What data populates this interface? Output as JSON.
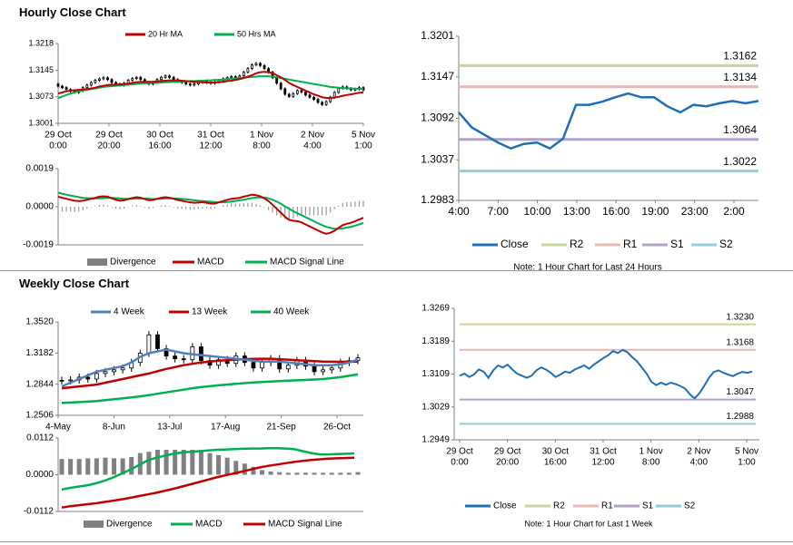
{
  "sections": {
    "hourly_title": "Hourly Close Chart",
    "weekly_title": "Weekly Close Chart"
  },
  "colors": {
    "ma_red": "#c00000",
    "ma_green": "#00b050",
    "ma_blue": "#4f81bd",
    "close": "#1f6fb5",
    "r2": "#c3d69b",
    "r1": "#e6b9b8",
    "s1": "#b3a2c7",
    "s2": "#93cddd",
    "divergence": "#808080",
    "axis": "#808080"
  },
  "chart_data": [
    {
      "id": "hourly_price",
      "type": "candlestick",
      "title": "Hourly Close Chart",
      "legend": [
        "20 Hr MA",
        "50 Hrs MA"
      ],
      "y_ticks": [
        "1.3218",
        "1.3145",
        "1.3073",
        "1.3001"
      ],
      "ylim": [
        1.3001,
        1.3218
      ],
      "x_ticks": [
        [
          "29 Oct",
          "0:00"
        ],
        [
          "29 Oct",
          "20:00"
        ],
        [
          "30 Oct",
          "16:00"
        ],
        [
          "31 Oct",
          "12:00"
        ],
        [
          "1 Nov",
          "8:00"
        ],
        [
          "2 Nov",
          "4:00"
        ],
        [
          "5 Nov",
          "1:00"
        ]
      ],
      "close": [
        1.3102,
        1.3098,
        1.3093,
        1.3088,
        1.3085,
        1.309,
        1.3098,
        1.3105,
        1.3112,
        1.3118,
        1.3122,
        1.3125,
        1.312,
        1.3112,
        1.3108,
        1.3105,
        1.311,
        1.3118,
        1.3123,
        1.3126,
        1.312,
        1.3112,
        1.3108,
        1.3112,
        1.312,
        1.3126,
        1.313,
        1.3126,
        1.312,
        1.3115,
        1.3112,
        1.3108,
        1.3105,
        1.3108,
        1.3112,
        1.3115,
        1.3112,
        1.311,
        1.3113,
        1.3118,
        1.3122,
        1.3125,
        1.3128,
        1.3126,
        1.313,
        1.314,
        1.315,
        1.316,
        1.3164,
        1.3158,
        1.315,
        1.314,
        1.3125,
        1.311,
        1.3095,
        1.308,
        1.3074,
        1.3082,
        1.309,
        1.3086,
        1.3078,
        1.3072,
        1.3066,
        1.3058,
        1.3052,
        1.306,
        1.3072,
        1.3085,
        1.3096,
        1.31,
        1.3096,
        1.3092,
        1.3094,
        1.3098,
        1.3092
      ],
      "ma20": [
        1.3082,
        1.3085,
        1.3088,
        1.309,
        1.3091,
        1.3092,
        1.3093,
        1.3094,
        1.3096,
        1.3098,
        1.3101,
        1.3103,
        1.3105,
        1.3106,
        1.3106,
        1.3107,
        1.3108,
        1.3109,
        1.3111,
        1.3113,
        1.3114,
        1.3114,
        1.3114,
        1.3114,
        1.3115,
        1.3116,
        1.3117,
        1.3118,
        1.3118,
        1.3118,
        1.3117,
        1.3116,
        1.3115,
        1.3114,
        1.3113,
        1.3113,
        1.3112,
        1.3112,
        1.3112,
        1.3113,
        1.3114,
        1.3116,
        1.3117,
        1.3119,
        1.3121,
        1.3124,
        1.3128,
        1.3132,
        1.3137,
        1.314,
        1.3141,
        1.314,
        1.3137,
        1.3132,
        1.3126,
        1.3119,
        1.3111,
        1.3105,
        1.31,
        1.3095,
        1.309,
        1.3085,
        1.308,
        1.3076,
        1.3072,
        1.307,
        1.307,
        1.3071,
        1.3073,
        1.3076,
        1.3078,
        1.308,
        1.3082,
        1.3084,
        1.3085
      ],
      "ma50": [
        1.307,
        1.3074,
        1.3078,
        1.3082,
        1.3085,
        1.3088,
        1.309,
        1.3092,
        1.3094,
        1.3096,
        1.3098,
        1.31,
        1.3101,
        1.3102,
        1.3103,
        1.3104,
        1.3105,
        1.3106,
        1.3107,
        1.3108,
        1.3109,
        1.311,
        1.311,
        1.3111,
        1.3111,
        1.3112,
        1.3113,
        1.3113,
        1.3114,
        1.3114,
        1.3115,
        1.3115,
        1.3116,
        1.3116,
        1.3117,
        1.3117,
        1.3118,
        1.3118,
        1.3119,
        1.3119,
        1.312,
        1.3121,
        1.3122,
        1.3123,
        1.3124,
        1.3125,
        1.3126,
        1.3127,
        1.3128,
        1.3129,
        1.3129,
        1.3129,
        1.3128,
        1.3126,
        1.3124,
        1.3122,
        1.312,
        1.3118,
        1.3116,
        1.3114,
        1.3112,
        1.311,
        1.3108,
        1.3106,
        1.3104,
        1.3102,
        1.31,
        1.3099,
        1.3098,
        1.3097,
        1.3096,
        1.3096,
        1.3095,
        1.3095,
        1.3095
      ]
    },
    {
      "id": "hourly_macd",
      "type": "macd",
      "legend": [
        "Divergence",
        "MACD",
        "MACD Signal Line"
      ],
      "y_ticks": [
        "0.0019",
        "0.0000",
        "-0.0019"
      ],
      "ylim": [
        -0.0019,
        0.0019
      ],
      "macd": [
        0.0005,
        0.00045,
        0.0004,
        0.00035,
        0.0003,
        0.00028,
        0.0003,
        0.00035,
        0.0004,
        0.00045,
        0.0005,
        0.00052,
        0.0005,
        0.00042,
        0.00035,
        0.0003,
        0.00032,
        0.00038,
        0.00044,
        0.00048,
        0.00045,
        0.00038,
        0.00032,
        0.00034,
        0.0004,
        0.00045,
        0.00048,
        0.00045,
        0.0004,
        0.00034,
        0.0003,
        0.00026,
        0.00022,
        0.0002,
        0.00021,
        0.00023,
        0.0002,
        0.00016,
        0.00016,
        0.00022,
        0.00028,
        0.00035,
        0.0004,
        0.00042,
        0.00045,
        0.0005,
        0.00055,
        0.0006,
        0.00058,
        0.00052,
        0.00042,
        0.00028,
        0.0001,
        -0.0001,
        -0.0003,
        -0.0005,
        -0.00065,
        -0.0007,
        -0.00072,
        -0.00078,
        -0.00088,
        -0.00098,
        -0.00108,
        -0.00118,
        -0.00128,
        -0.00135,
        -0.0013,
        -0.0012,
        -0.00105,
        -0.00092,
        -0.00085,
        -0.0008,
        -0.00072,
        -0.00064,
        -0.00055
      ],
      "signal": [
        0.0007,
        0.00065,
        0.0006,
        0.00056,
        0.00052,
        0.00048,
        0.00045,
        0.00043,
        0.00042,
        0.00042,
        0.00042,
        0.00043,
        0.00044,
        0.00044,
        0.00043,
        0.00041,
        0.0004,
        0.0004,
        0.0004,
        0.00041,
        0.00042,
        0.00041,
        0.0004,
        0.00039,
        0.00039,
        0.0004,
        0.00041,
        0.00042,
        0.00042,
        0.00041,
        0.00039,
        0.00037,
        0.00035,
        0.00032,
        0.0003,
        0.00029,
        0.00027,
        0.00025,
        0.00023,
        0.00022,
        0.00022,
        0.00024,
        0.00026,
        0.00029,
        0.00032,
        0.00035,
        0.00039,
        0.00043,
        0.00046,
        0.00047,
        0.00046,
        0.00042,
        0.00035,
        0.00026,
        0.00015,
        2e-05,
        -0.0001,
        -0.00022,
        -0.00032,
        -0.00042,
        -0.00052,
        -0.00062,
        -0.00072,
        -0.00082,
        -0.00092,
        -0.001,
        -0.00106,
        -0.0011,
        -0.0011,
        -0.00108,
        -0.00104,
        -0.001,
        -0.00094,
        -0.00088,
        -0.0008
      ]
    },
    {
      "id": "hourly_pivots",
      "type": "line",
      "note": "Note: 1 Hour Chart for Last 24 Hours",
      "legend": [
        "Close",
        "R2",
        "R1",
        "S1",
        "S2"
      ],
      "y_ticks": [
        "1.3201",
        "1.3147",
        "1.3092",
        "1.3037",
        "1.2983"
      ],
      "ylim": [
        1.2983,
        1.3201
      ],
      "x_ticks": [
        "4:00",
        "7:00",
        "10:00",
        "13:00",
        "16:00",
        "19:00",
        "23:00",
        "2:00"
      ],
      "levels": {
        "R2": 1.3162,
        "R1": 1.3134,
        "S1": 1.3064,
        "S2": 1.3022
      },
      "level_labels": {
        "R2": "1.3162",
        "R1": "1.3134",
        "S1": "1.3064",
        "S2": "1.3022"
      },
      "close": [
        1.31,
        1.308,
        1.307,
        1.306,
        1.3052,
        1.3058,
        1.306,
        1.3052,
        1.3065,
        1.311,
        1.311,
        1.3114,
        1.312,
        1.3125,
        1.312,
        1.312,
        1.3108,
        1.31,
        1.311,
        1.3108,
        1.3112,
        1.3115,
        1.3112,
        1.3115
      ]
    },
    {
      "id": "weekly_price",
      "type": "candlestick",
      "title": "Weekly Close Chart",
      "legend": [
        "4 Week",
        "13 Week",
        "40 Week"
      ],
      "y_ticks": [
        "1.3520",
        "1.3182",
        "1.2844",
        "1.2506"
      ],
      "ylim": [
        1.2506,
        1.352
      ],
      "x_ticks": [
        "4-May",
        "8-Jun",
        "13-Jul",
        "17-Aug",
        "21-Sep",
        "26-Oct"
      ],
      "close": [
        1.288,
        1.289,
        1.292,
        1.29,
        1.296,
        1.298,
        1.3,
        1.302,
        1.308,
        1.318,
        1.338,
        1.323,
        1.315,
        1.312,
        1.311,
        1.325,
        1.31,
        1.305,
        1.311,
        1.307,
        1.315,
        1.308,
        1.302,
        1.308,
        1.312,
        1.301,
        1.305,
        1.31,
        1.304,
        1.298,
        1.3,
        1.302,
        1.308,
        1.31,
        1.313
      ],
      "ma4": [
        1.282,
        1.286,
        1.29,
        1.294,
        1.298,
        1.3,
        1.302,
        1.304,
        1.308,
        1.314,
        1.318,
        1.32,
        1.322,
        1.32,
        1.318,
        1.317,
        1.316,
        1.315,
        1.314,
        1.313,
        1.312,
        1.311,
        1.31,
        1.309,
        1.309,
        1.309,
        1.308,
        1.307,
        1.306,
        1.305,
        1.305,
        1.305,
        1.306,
        1.308,
        1.311
      ],
      "ma13": [
        1.28,
        1.281,
        1.282,
        1.283,
        1.284,
        1.286,
        1.288,
        1.29,
        1.292,
        1.294,
        1.296,
        1.2985,
        1.301,
        1.303,
        1.305,
        1.3065,
        1.308,
        1.309,
        1.31,
        1.3105,
        1.311,
        1.3115,
        1.3118,
        1.312,
        1.312,
        1.3115,
        1.311,
        1.3105,
        1.31,
        1.3095,
        1.309,
        1.3088,
        1.3087,
        1.3088,
        1.309
      ],
      "ma40": [
        1.264,
        1.2645,
        1.265,
        1.2655,
        1.2662,
        1.267,
        1.268,
        1.269,
        1.27,
        1.2712,
        1.2725,
        1.274,
        1.2755,
        1.277,
        1.2785,
        1.28,
        1.2812,
        1.2822,
        1.2832,
        1.284,
        1.2848,
        1.2855,
        1.2862,
        1.2868,
        1.2873,
        1.2878,
        1.2882,
        1.2886,
        1.289,
        1.2895,
        1.29,
        1.291,
        1.292,
        1.2935,
        1.295
      ]
    },
    {
      "id": "weekly_macd",
      "type": "macd",
      "legend": [
        "Divergence",
        "MACD",
        "MACD Signal Line"
      ],
      "y_ticks": [
        "0.0112",
        "0.0000",
        "-0.0112"
      ],
      "ylim": [
        -0.0112,
        0.0112
      ],
      "divergence": [
        0.0048,
        0.0048,
        0.0048,
        0.005,
        0.005,
        0.0052,
        0.005,
        0.005,
        0.0054,
        0.0066,
        0.007,
        0.0076,
        0.0076,
        0.0076,
        0.0076,
        0.0076,
        0.0072,
        0.0066,
        0.006,
        0.0052,
        0.0042,
        0.0034,
        0.0024,
        0.0014,
        0.001,
        0.0008,
        0.0006,
        0.0006,
        0.0006,
        0.0006,
        0.0006,
        0.0006,
        0.0006,
        0.0006,
        0.0008
      ],
      "macd": [
        -0.0045,
        -0.004,
        -0.0036,
        -0.0032,
        -0.0026,
        -0.0018,
        -0.0008,
        0.0004,
        0.0016,
        0.003,
        0.0044,
        0.0052,
        0.0058,
        0.0064,
        0.0068,
        0.007,
        0.0072,
        0.0074,
        0.0076,
        0.0077,
        0.0078,
        0.0079,
        0.008,
        0.008,
        0.0081,
        0.0081,
        0.008,
        0.0078,
        0.0072,
        0.0066,
        0.0062,
        0.0062,
        0.0063,
        0.0064,
        0.0065
      ],
      "signal": [
        -0.01,
        -0.0096,
        -0.0093,
        -0.009,
        -0.0087,
        -0.0083,
        -0.0079,
        -0.0075,
        -0.007,
        -0.0065,
        -0.006,
        -0.0055,
        -0.0049,
        -0.0043,
        -0.0036,
        -0.0029,
        -0.0022,
        -0.0015,
        -0.0008,
        -0.0002,
        0.0004,
        0.001,
        0.0016,
        0.0022,
        0.0027,
        0.0031,
        0.0035,
        0.0039,
        0.0042,
        0.0045,
        0.0047,
        0.0049,
        0.005,
        0.0051,
        0.0052
      ]
    },
    {
      "id": "weekly_pivots",
      "type": "line",
      "note": "Note: 1 Hour Chart for Last 1 Week",
      "legend": [
        "Close",
        "R2",
        "R1",
        "S1",
        "S2"
      ],
      "y_ticks": [
        "1.3269",
        "1.3189",
        "1.3109",
        "1.3029",
        "1.2949"
      ],
      "ylim": [
        1.2949,
        1.3269
      ],
      "x_ticks": [
        [
          "29 Oct",
          "0:00"
        ],
        [
          "29 Oct",
          "20:00"
        ],
        [
          "30 Oct",
          "16:00"
        ],
        [
          "31 Oct",
          "12:00"
        ],
        [
          "1 Nov",
          "8:00"
        ],
        [
          "2 Nov",
          "4:00"
        ],
        [
          "5 Nov",
          "1:00"
        ]
      ],
      "levels": {
        "R2": 1.323,
        "R1": 1.3168,
        "S1": 1.3047,
        "S2": 1.2988
      },
      "level_labels": {
        "R2": "1.3230",
        "R1": "1.3168",
        "S1": "1.3047",
        "S2": "1.2988"
      },
      "close": [
        1.3105,
        1.311,
        1.3102,
        1.3108,
        1.312,
        1.3115,
        1.31,
        1.3118,
        1.313,
        1.3125,
        1.3132,
        1.312,
        1.311,
        1.3105,
        1.31,
        1.3105,
        1.3118,
        1.3125,
        1.312,
        1.3112,
        1.3102,
        1.3108,
        1.3115,
        1.3112,
        1.312,
        1.3125,
        1.313,
        1.3122,
        1.3132,
        1.314,
        1.3148,
        1.3155,
        1.3165,
        1.316,
        1.3168,
        1.3162,
        1.315,
        1.314,
        1.3125,
        1.311,
        1.309,
        1.3082,
        1.3088,
        1.3083,
        1.3088,
        1.3085,
        1.308,
        1.3074,
        1.306,
        1.305,
        1.3062,
        1.308,
        1.31,
        1.3114,
        1.3118,
        1.3112,
        1.3108,
        1.3104,
        1.311,
        1.3114,
        1.3112,
        1.3115
      ]
    }
  ]
}
